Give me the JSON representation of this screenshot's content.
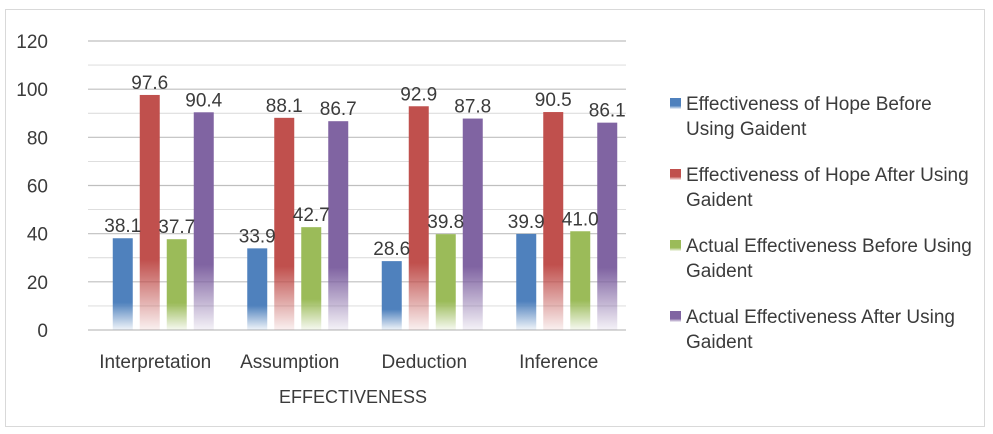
{
  "chart_data": {
    "type": "bar",
    "title": "",
    "xlabel": "EFFECTIVENESS",
    "ylabel": "",
    "ylim": [
      0,
      120
    ],
    "yticks": [
      0,
      20,
      40,
      60,
      80,
      100,
      120
    ],
    "grid": true,
    "legend_position": "right",
    "categories": [
      "Interpretation",
      "Assumption",
      "Deduction",
      "Inference"
    ],
    "series": [
      {
        "name": "Effectiveness of Hope Before Using Gaident",
        "name_lines": [
          "Effectiveness of Hope Before",
          "Using Gaident"
        ],
        "color": "#4f81bd",
        "values": [
          38.1,
          33.9,
          28.6,
          39.9
        ],
        "labels": [
          "38.1",
          "33.9",
          "28.6",
          "39.9"
        ]
      },
      {
        "name": "Effectiveness of Hope After Using Gaident",
        "name_lines": [
          "Effectiveness of Hope After Using",
          "Gaident"
        ],
        "color": "#c0504d",
        "values": [
          97.6,
          88.1,
          92.9,
          90.5
        ],
        "labels": [
          "97.6",
          "88.1",
          "92.9",
          "90.5"
        ]
      },
      {
        "name": "Actual Effectiveness Before Using Gaident",
        "name_lines": [
          "Actual Effectiveness Before Using",
          "Gaident"
        ],
        "color": "#9bbb59",
        "values": [
          37.7,
          42.7,
          39.8,
          41.0
        ],
        "labels": [
          "37.7",
          "42.7",
          "39.8",
          "41.0"
        ]
      },
      {
        "name": "Actual Effectiveness After Using Gaident",
        "name_lines": [
          "Actual Effectiveness After Using",
          "Gaident"
        ],
        "color": "#8064a2",
        "values": [
          90.4,
          86.7,
          87.8,
          86.1
        ],
        "labels": [
          "90.4",
          "86.7",
          "87.8",
          "86.1"
        ]
      }
    ]
  }
}
